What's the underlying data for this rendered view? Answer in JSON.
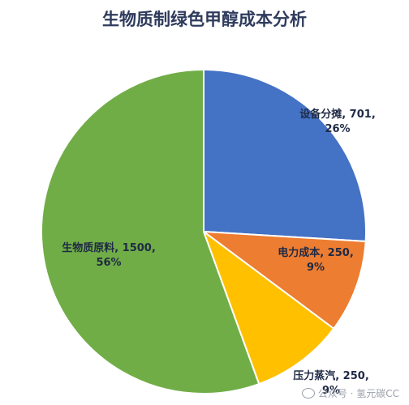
{
  "chart_data": {
    "type": "pie",
    "title": "生物质制绿色甲醇成本分析",
    "slices": [
      {
        "name": "设备分摊",
        "value": 701,
        "percent": "26%",
        "color": "#4472c4",
        "label_line1": "设备分摊, 701,",
        "label_line2": "26%"
      },
      {
        "name": "电力成本",
        "value": 250,
        "percent": "9%",
        "color": "#ed7d31",
        "label_line1": "电力成本, 250,",
        "label_line2": "9%"
      },
      {
        "name": "压力蒸汽",
        "value": 250,
        "percent": "9%",
        "color": "#ffc000",
        "label_line1": "压力蒸汽, 250,",
        "label_line2": "9%"
      },
      {
        "name": "生物质原料",
        "value": 1500,
        "percent": "56%",
        "color": "#70ad47",
        "label_line1": "生物质原料, 1500,",
        "label_line2": "56%"
      }
    ]
  },
  "watermark": {
    "text": "公众号 · 氢元碳CC",
    "icon": "wechat-icon"
  }
}
